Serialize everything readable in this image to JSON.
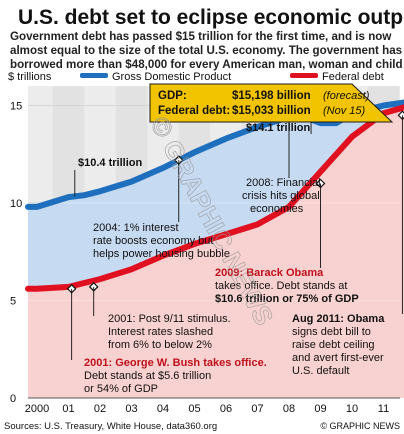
{
  "header": {
    "title": "U.S. debt set to eclipse economic output",
    "subtitle_lines": [
      "Government debt has passed $15 trillion for the first time, and is now",
      "almost equal to the size of the total U.S. economy. The government has",
      "borrowed more than $48,000 for every American man, woman and child"
    ]
  },
  "legend": {
    "unit": "$ trillions",
    "gdp": "Gross Domestic Product",
    "debt": "Federal debt"
  },
  "callout": {
    "gdp_label": "GDP:",
    "gdp_value": "$15,198 billion",
    "gdp_note": "(forecast)",
    "debt_label": "Federal debt:",
    "debt_value": "$15,033 billion",
    "debt_note": "(Nov 15)"
  },
  "annotations": {
    "gdp_2001": "$10.4 trillion",
    "gdp_2008": "$14.1 trillion",
    "crisis": [
      "2008: Financial",
      "crisis hits global",
      "economies"
    ],
    "rate": [
      "2004: 1% interest",
      "rate boosts economy but",
      "helps power housing bubble"
    ],
    "obama": [
      "2009: Barack Obama",
      "takes office. Debt stands at",
      "$10.6 trillion or 75% of GDP"
    ],
    "stimulus": [
      "2001: Post 9/11 stimulus.",
      "Interest rates slashed",
      "from 6% to below 2%"
    ],
    "bush": [
      "2001: George W. Bush takes office.",
      "Debt stands at $5.6 trillion",
      "or 54% of GDP"
    ],
    "aug2011": [
      "Aug 2011: Obama",
      "signs debt bill to",
      "raise debt ceiling",
      "and avert first-ever",
      "U.S. default"
    ]
  },
  "footer": {
    "source": "Sources: U.S. Treasury, White House, data360.org",
    "credit": "© GRAPHIC NEWS"
  },
  "watermark": "© GRAPHIC NEWS",
  "colors": {
    "gdp": "#1f6fbf",
    "debt": "#e01020",
    "gdp_fill": "#c6daf2",
    "debt_fill": "#f8d2d0",
    "callout": "#f2c400"
  },
  "chart_data": {
    "type": "area",
    "x_tick_labels": [
      "2000",
      "01",
      "02",
      "03",
      "04",
      "05",
      "06",
      "07",
      "08",
      "09",
      "10",
      "11"
    ],
    "ylabel": "$ trillions",
    "ylim": [
      0,
      16
    ],
    "y_ticks": [
      0,
      5,
      10,
      15
    ],
    "grid": true,
    "series": [
      {
        "name": "Gross Domestic Product",
        "x": [
          2000.0,
          2001.0,
          2001.5,
          2002.0,
          2003.0,
          2004.0,
          2005.0,
          2006.0,
          2007.0,
          2008.0,
          2008.5,
          2009.0,
          2009.5,
          2010.0,
          2011.0,
          2011.85
        ],
        "values": [
          9.8,
          10.3,
          10.4,
          10.6,
          11.1,
          11.8,
          12.6,
          13.3,
          13.9,
          14.4,
          14.4,
          14.1,
          14.1,
          14.6,
          15.0,
          15.2
        ]
      },
      {
        "name": "Federal debt",
        "x": [
          2000.0,
          2001.0,
          2002.0,
          2003.0,
          2004.0,
          2005.0,
          2006.0,
          2007.0,
          2008.0,
          2009.0,
          2010.0,
          2011.0,
          2011.85
        ],
        "values": [
          5.6,
          5.7,
          6.1,
          6.6,
          7.3,
          7.9,
          8.4,
          8.9,
          9.8,
          11.6,
          13.4,
          14.6,
          15.0
        ]
      }
    ],
    "events": [
      {
        "x": 2001.1,
        "series": "Federal debt",
        "value": 5.6
      },
      {
        "x": 2001.8,
        "series": "Federal debt",
        "value": 5.7
      },
      {
        "x": 2004.5,
        "series": "Gross Domestic Product",
        "value": 12.2
      },
      {
        "x": 2008.0,
        "series": "Gross Domestic Product",
        "value": 14.4
      },
      {
        "x": 2009.0,
        "series": "Federal debt",
        "value": 11.0
      },
      {
        "x": 2011.6,
        "series": "Federal debt",
        "value": 14.5
      }
    ]
  }
}
